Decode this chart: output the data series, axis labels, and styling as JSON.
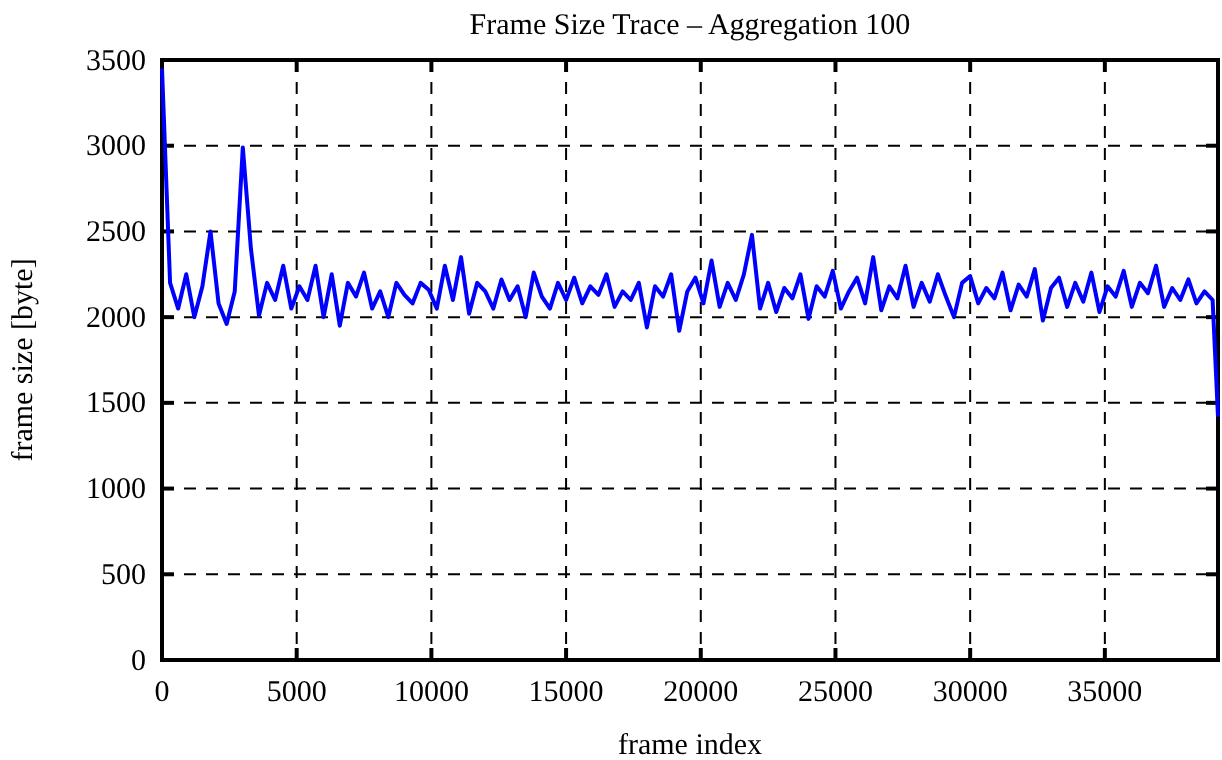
{
  "chart_data": {
    "type": "line",
    "title": "Frame Size Trace – Aggregation 100",
    "xlabel": "frame index",
    "ylabel": "frame size [byte]",
    "xlim": [
      0,
      39200
    ],
    "ylim": [
      0,
      3500
    ],
    "xticks": [
      0,
      5000,
      10000,
      15000,
      20000,
      25000,
      30000,
      35000
    ],
    "yticks": [
      0,
      500,
      1000,
      1500,
      2000,
      2500,
      3000,
      3500
    ],
    "grid": true,
    "line_style": "solid",
    "series": [
      {
        "color": "#0000ff",
        "x": [
          0,
          300,
          600,
          900,
          1200,
          1500,
          1800,
          2100,
          2400,
          2700,
          3000,
          3300,
          3600,
          3900,
          4200,
          4500,
          4800,
          5100,
          5400,
          5700,
          6000,
          6300,
          6600,
          6900,
          7200,
          7500,
          7800,
          8100,
          8400,
          8700,
          9000,
          9300,
          9600,
          9900,
          10200,
          10500,
          10800,
          11100,
          11400,
          11700,
          12000,
          12300,
          12600,
          12900,
          13200,
          13500,
          13800,
          14100,
          14400,
          14700,
          15000,
          15300,
          15600,
          15900,
          16200,
          16500,
          16800,
          17100,
          17400,
          17700,
          18000,
          18300,
          18600,
          18900,
          19200,
          19500,
          19800,
          20100,
          20400,
          20700,
          21000,
          21300,
          21600,
          21900,
          22200,
          22500,
          22800,
          23100,
          23400,
          23700,
          24000,
          24300,
          24600,
          24900,
          25200,
          25500,
          25800,
          26100,
          26400,
          26700,
          27000,
          27300,
          27600,
          27900,
          28200,
          28500,
          28800,
          29100,
          29400,
          29700,
          30000,
          30300,
          30600,
          30900,
          31200,
          31500,
          31800,
          32100,
          32400,
          32700,
          33000,
          33300,
          33600,
          33900,
          34200,
          34500,
          34800,
          35100,
          35400,
          35700,
          36000,
          36300,
          36600,
          36900,
          37200,
          37500,
          37800,
          38100,
          38400,
          38700,
          39000,
          39200
        ],
        "values": [
          3450,
          2200,
          2050,
          2250,
          2000,
          2180,
          2500,
          2080,
          1960,
          2150,
          2990,
          2400,
          2010,
          2200,
          2100,
          2300,
          2050,
          2180,
          2100,
          2300,
          2000,
          2250,
          1950,
          2200,
          2120,
          2260,
          2050,
          2150,
          2000,
          2200,
          2130,
          2080,
          2200,
          2160,
          2050,
          2300,
          2100,
          2350,
          2020,
          2200,
          2150,
          2050,
          2220,
          2100,
          2180,
          2000,
          2260,
          2120,
          2050,
          2200,
          2100,
          2230,
          2080,
          2180,
          2130,
          2250,
          2060,
          2150,
          2100,
          2200,
          1940,
          2180,
          2120,
          2250,
          1920,
          2150,
          2230,
          2080,
          2330,
          2060,
          2200,
          2100,
          2250,
          2480,
          2050,
          2200,
          2030,
          2170,
          2110,
          2250,
          1990,
          2180,
          2120,
          2270,
          2050,
          2150,
          2230,
          2080,
          2350,
          2040,
          2180,
          2110,
          2300,
          2060,
          2200,
          2090,
          2250,
          2120,
          2000,
          2200,
          2240,
          2080,
          2170,
          2110,
          2260,
          2040,
          2190,
          2120,
          2280,
          1980,
          2170,
          2230,
          2060,
          2200,
          2090,
          2260,
          2030,
          2180,
          2120,
          2270,
          2060,
          2200,
          2140,
          2300,
          2060,
          2170,
          2100,
          2220,
          2080,
          2150,
          2100,
          1420
        ]
      }
    ]
  }
}
